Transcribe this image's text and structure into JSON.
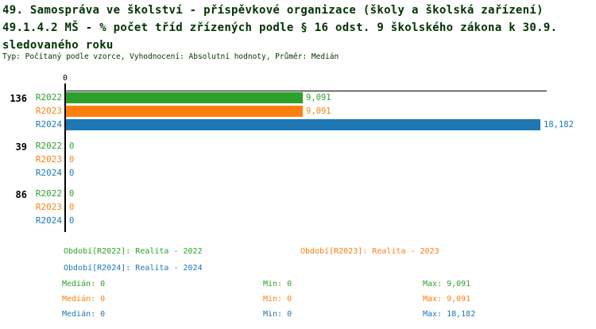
{
  "page": {
    "title_line1": "49. Samospráva ve školství - příspěvkové organizace (školy a školská zařízení)",
    "title_line2": "49.1.4.2 MŠ - % počet tříd zřízených podle § 16 odst. 9 školského zákona k 30.9.",
    "title_line3": "sledovaného roku",
    "meta_line": "Typ: Počítaný podle vzorce, Vyhodnocení: Absolutní hodnoty, Průměr: Medián"
  },
  "colors": {
    "series_r2022": "#2ca02c",
    "series_r2023": "#ff7f0e",
    "series_r2024": "#1f77b4",
    "title_text": "#003300",
    "axis": "#000000",
    "background": "#ffffff"
  },
  "chart_data": {
    "type": "bar",
    "orientation": "horizontal",
    "title": "49.1.4.2 MŠ - % počet tříd zřízených podle § 16 odst. 9 školského zákona k 30.9. sledovaného roku",
    "xlabel": "",
    "ylabel": "",
    "x_axis": {
      "min": 0,
      "tick_labels": [
        "0"
      ],
      "max_visible": 18.43
    },
    "grid": false,
    "legend_position": "bottom",
    "series": [
      "R2022",
      "R2023",
      "R2024"
    ],
    "categories": [
      "136",
      "39",
      "86"
    ],
    "groups": [
      {
        "label": "136",
        "rows": [
          {
            "series": "R2022",
            "value": 9.091,
            "display": "9,091"
          },
          {
            "series": "R2023",
            "value": 9.091,
            "display": "9,091"
          },
          {
            "series": "R2024",
            "value": 18.182,
            "display": "18,182"
          }
        ]
      },
      {
        "label": "39",
        "rows": [
          {
            "series": "R2022",
            "value": 0,
            "display": "0"
          },
          {
            "series": "R2023",
            "value": 0,
            "display": "0"
          },
          {
            "series": "R2024",
            "value": 0,
            "display": "0"
          }
        ]
      },
      {
        "label": "86",
        "rows": [
          {
            "series": "R2022",
            "value": 0,
            "display": "0"
          },
          {
            "series": "R2023",
            "value": 0,
            "display": "0"
          },
          {
            "series": "R2024",
            "value": 0,
            "display": "0"
          }
        ]
      }
    ]
  },
  "legend": {
    "items": [
      {
        "label": "Období[R2022]: Realita - 2022",
        "color": "#2ca02c"
      },
      {
        "label": "Období[R2023]: Realita - 2023",
        "color": "#ff7f0e"
      },
      {
        "label": "Období[R2024]: Realita - 2024",
        "color": "#1f77b4"
      }
    ],
    "stats": [
      {
        "series": "R2022",
        "median": "Medián: 0",
        "min": "Min: 0",
        "max": "Max: 9,091",
        "color": "#2ca02c"
      },
      {
        "series": "R2023",
        "median": "Medián: 0",
        "min": "Min: 0",
        "max": "Max: 9,091",
        "color": "#ff7f0e"
      },
      {
        "series": "R2024",
        "median": "Medián: 0",
        "min": "Min: 0",
        "max": "Max: 18,182",
        "color": "#1f77b4"
      }
    ]
  }
}
